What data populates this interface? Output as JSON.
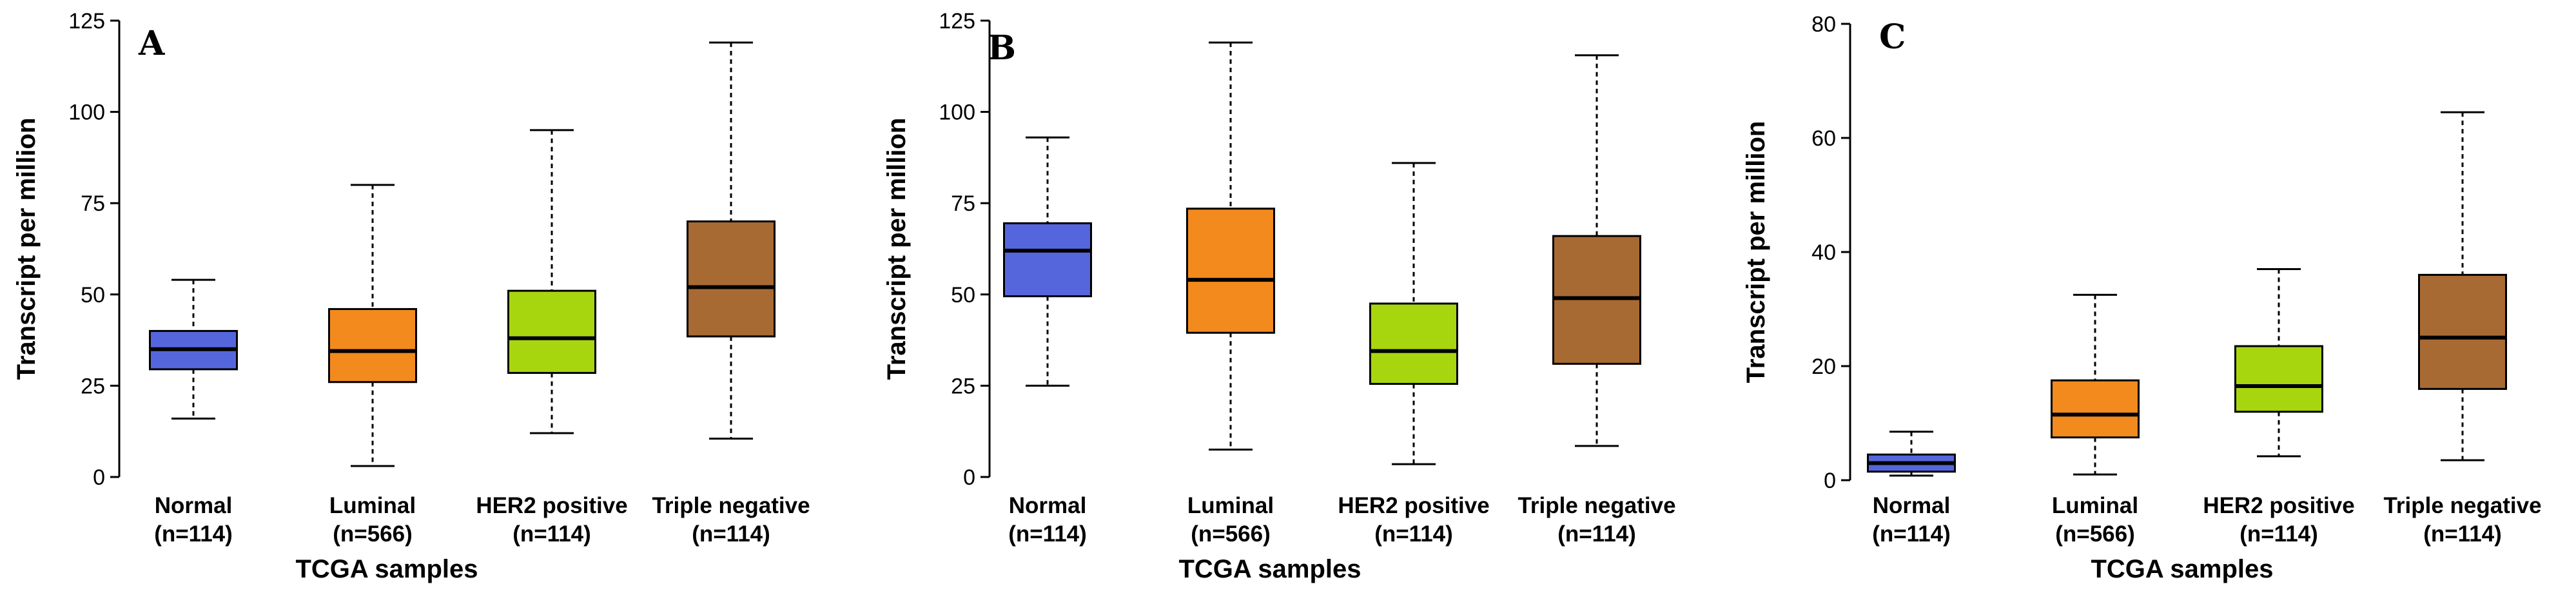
{
  "chart_data": [
    {
      "type": "box",
      "panel_label": "A",
      "ylabel": "Transcript per million",
      "xlabel": "TCGA samples",
      "ylim": [
        0,
        125
      ],
      "yticks": [
        0,
        25,
        50,
        75,
        100,
        125
      ],
      "categories": [
        {
          "name": "Normal",
          "n": "(n=114)",
          "color": "#5566DD",
          "min": 16,
          "q1": 29.5,
          "median": 35,
          "q3": 40,
          "max": 54
        },
        {
          "name": "Luminal",
          "n": "(n=566)",
          "color": "#F28A1E",
          "min": 3,
          "q1": 26,
          "median": 34.5,
          "q3": 46,
          "max": 80
        },
        {
          "name": "HER2 positive",
          "n": "(n=114)",
          "color": "#A8D60E",
          "min": 12,
          "q1": 28.5,
          "median": 38,
          "q3": 51,
          "max": 95
        },
        {
          "name": "Triple negative",
          "n": "(n=114)",
          "color": "#A86A33",
          "min": 10.5,
          "q1": 38.5,
          "median": 52,
          "q3": 70,
          "max": 119
        }
      ]
    },
    {
      "type": "box",
      "panel_label": "B",
      "ylabel": "Transcript per million",
      "xlabel": "TCGA samples",
      "ylim": [
        0,
        125
      ],
      "yticks": [
        0,
        25,
        50,
        75,
        100,
        125
      ],
      "categories": [
        {
          "name": "Normal",
          "n": "(n=114)",
          "color": "#5566DD",
          "min": 25,
          "q1": 49.5,
          "median": 62,
          "q3": 69.5,
          "max": 93
        },
        {
          "name": "Luminal",
          "n": "(n=566)",
          "color": "#F28A1E",
          "min": 7.5,
          "q1": 39.5,
          "median": 54,
          "q3": 73.5,
          "max": 119
        },
        {
          "name": "HER2 positive",
          "n": "(n=114)",
          "color": "#A8D60E",
          "min": 3.5,
          "q1": 25.5,
          "median": 34.5,
          "q3": 47.5,
          "max": 86
        },
        {
          "name": "Triple negative",
          "n": "(n=114)",
          "color": "#A86A33",
          "min": 8.5,
          "q1": 31,
          "median": 49,
          "q3": 66,
          "max": 115.5
        }
      ]
    },
    {
      "type": "box",
      "panel_label": "C",
      "ylabel": "Transcript per million",
      "xlabel": "TCGA samples",
      "ylim": [
        0,
        80
      ],
      "yticks": [
        0,
        20,
        40,
        60,
        80
      ],
      "categories": [
        {
          "name": "Normal",
          "n": "(n=114)",
          "color": "#5566DD",
          "min": 0.8,
          "q1": 1.5,
          "median": 3,
          "q3": 4.5,
          "max": 8.5
        },
        {
          "name": "Luminal",
          "n": "(n=566)",
          "color": "#F28A1E",
          "min": 1,
          "q1": 7.5,
          "median": 11.5,
          "q3": 17.5,
          "max": 32.5
        },
        {
          "name": "HER2 positive",
          "n": "(n=114)",
          "color": "#A8D60E",
          "min": 4.2,
          "q1": 12,
          "median": 16.5,
          "q3": 23.5,
          "max": 37
        },
        {
          "name": "Triple negative",
          "n": "(n=114)",
          "color": "#A86A33",
          "min": 3.5,
          "q1": 16,
          "median": 25,
          "q3": 36,
          "max": 64.5
        }
      ]
    }
  ]
}
